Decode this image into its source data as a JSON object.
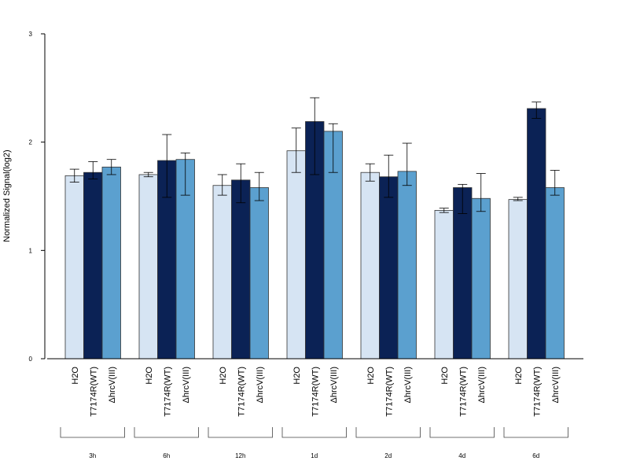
{
  "chart_data": {
    "type": "bar",
    "ylabel": "Normalized Signal(log2)",
    "ylim": [
      0,
      3
    ],
    "yticks": [
      "0",
      "1",
      "2",
      "3"
    ],
    "bar_labels": [
      "H2O",
      "T7174R(WT)",
      "ΔhrcV(III)"
    ],
    "groups": [
      "3h",
      "6h",
      "12h",
      "1d",
      "2d",
      "4d",
      "6d"
    ],
    "colors": {
      "H2O": "#d6e4f3",
      "T7174R(WT)": "#0b2255",
      "ΔhrcV(III)": "#5ba0cf"
    },
    "series": [
      {
        "name": "H2O",
        "values": [
          1.69,
          1.7,
          1.6,
          1.92,
          1.72,
          1.37,
          1.47
        ],
        "err_low": [
          1.63,
          1.68,
          1.51,
          1.72,
          1.64,
          1.35,
          1.46
        ],
        "err_high": [
          1.75,
          1.72,
          1.7,
          2.13,
          1.8,
          1.39,
          1.49
        ]
      },
      {
        "name": "T7174R(WT)",
        "values": [
          1.72,
          1.83,
          1.65,
          2.19,
          1.68,
          1.58,
          2.31
        ],
        "err_low": [
          1.66,
          1.49,
          1.44,
          1.7,
          1.49,
          1.34,
          2.22
        ],
        "err_high": [
          1.82,
          2.07,
          1.8,
          2.41,
          1.88,
          1.61,
          2.37
        ]
      },
      {
        "name": "ΔhrcV(III)",
        "values": [
          1.77,
          1.84,
          1.58,
          2.1,
          1.73,
          1.48,
          1.58
        ],
        "err_low": [
          1.7,
          1.51,
          1.46,
          1.72,
          1.6,
          1.36,
          1.51
        ],
        "err_high": [
          1.84,
          1.9,
          1.72,
          2.17,
          1.99,
          1.71,
          1.74
        ]
      }
    ]
  }
}
